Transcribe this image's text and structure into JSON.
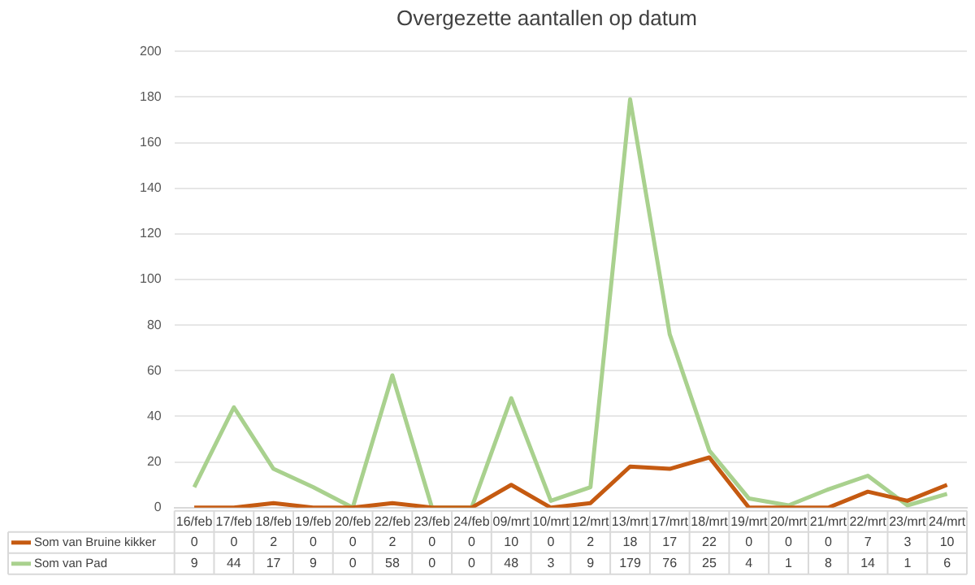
{
  "chart_data": {
    "type": "line",
    "title": "Overgezette aantallen op datum",
    "categories": [
      "16/feb",
      "17/feb",
      "18/feb",
      "19/feb",
      "20/feb",
      "22/feb",
      "23/feb",
      "24/feb",
      "09/mrt",
      "10/mrt",
      "12/mrt",
      "13/mrt",
      "17/mrt",
      "18/mrt",
      "19/mrt",
      "20/mrt",
      "21/mrt",
      "22/mrt",
      "23/mrt",
      "24/mrt"
    ],
    "series": [
      {
        "name": "Som van Bruine kikker",
        "color": "#c55a11",
        "values": [
          0,
          0,
          2,
          0,
          0,
          2,
          0,
          0,
          10,
          0,
          2,
          18,
          17,
          22,
          0,
          0,
          0,
          7,
          3,
          10
        ]
      },
      {
        "name": "Som van Pad",
        "color": "#a9d18e",
        "values": [
          9,
          44,
          17,
          9,
          0,
          58,
          0,
          0,
          48,
          3,
          9,
          179,
          76,
          25,
          4,
          1,
          8,
          14,
          1,
          6
        ]
      }
    ],
    "ylim": [
      0,
      200
    ],
    "yticks": [
      0,
      20,
      40,
      60,
      80,
      100,
      120,
      140,
      160,
      180,
      200
    ],
    "grid": "y",
    "legend": "bottom",
    "data_labels": true,
    "marker": "none",
    "line_style": "solid"
  }
}
